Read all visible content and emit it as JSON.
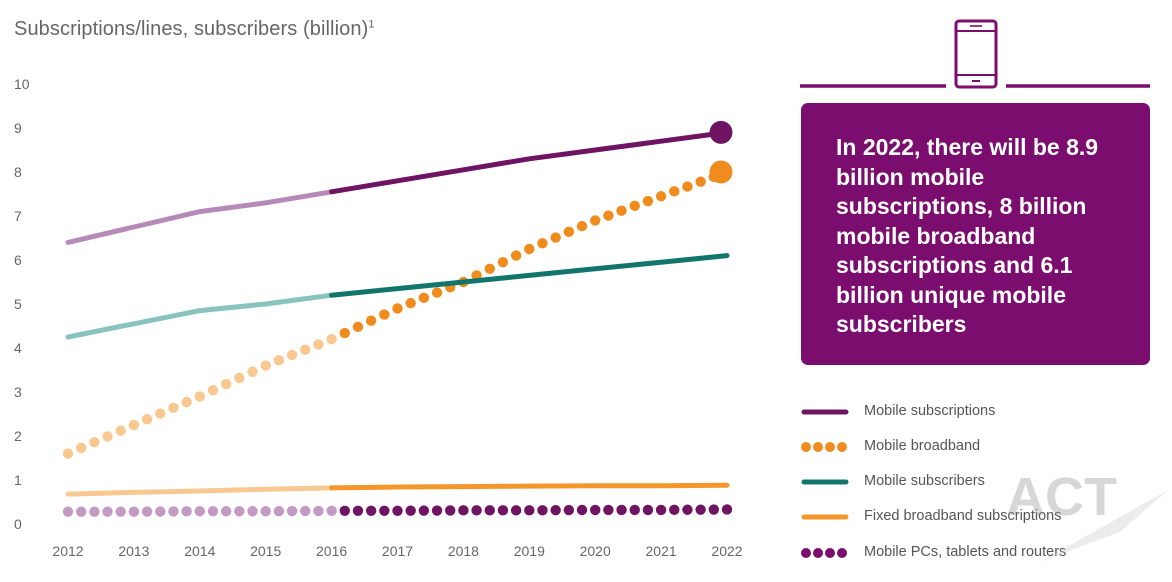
{
  "title": {
    "text": "Subscriptions/lines, subscribers (billion)",
    "superscript": "1"
  },
  "callout": {
    "text": "In 2022, there will be 8.9 billion mobile subscriptions, 8 billion mobile broadband subscriptions and 6.1 billion unique mobile subscribers",
    "background": "#7a0d6e",
    "icon": "mobile-phone-icon"
  },
  "legend": [
    {
      "label": "Mobile subscriptions",
      "style": "line",
      "color": "#6e1463"
    },
    {
      "label": "Mobile broadband",
      "style": "dots",
      "color": "#f08c1e"
    },
    {
      "label": "Mobile subscribers",
      "style": "line",
      "color": "#12756c"
    },
    {
      "label": "Fixed broadband subscriptions",
      "style": "line",
      "color": "#f5962a"
    },
    {
      "label": "Mobile PCs, tablets and routers",
      "style": "dots",
      "color": "#7a0d6e"
    }
  ],
  "watermark": "ACT",
  "chart_data": {
    "type": "line",
    "title": "Subscriptions/lines, subscribers (billion)",
    "x": [
      "2012",
      "2013",
      "2014",
      "2015",
      "2016",
      "2017",
      "2018",
      "2019",
      "2020",
      "2021",
      "2022"
    ],
    "ylim": [
      0,
      10
    ],
    "yticks": [
      0,
      1,
      2,
      3,
      4,
      5,
      6,
      7,
      8,
      9,
      10
    ],
    "grid": false,
    "legend_position": "right",
    "forecast_from": "2016",
    "series": [
      {
        "name": "Mobile subscriptions",
        "style": "line",
        "color": "#6e1463",
        "history_color": "#b58ab8",
        "values": [
          6.4,
          6.75,
          7.1,
          7.3,
          7.55,
          7.8,
          8.05,
          8.3,
          8.5,
          8.7,
          8.9
        ],
        "end_marker": true
      },
      {
        "name": "Mobile broadband",
        "style": "dots",
        "color": "#f08c1e",
        "history_color": "#f8c890",
        "values": [
          1.6,
          2.25,
          2.9,
          3.6,
          4.2,
          4.9,
          5.5,
          6.25,
          6.9,
          7.45,
          8.0
        ],
        "end_marker": true
      },
      {
        "name": "Mobile subscribers",
        "style": "line",
        "color": "#12756c",
        "history_color": "#89c3bd",
        "values": [
          4.25,
          4.55,
          4.85,
          5.0,
          5.2,
          5.35,
          5.5,
          5.65,
          5.8,
          5.95,
          6.1
        ],
        "end_marker": false
      },
      {
        "name": "Fixed broadband subscriptions",
        "style": "line",
        "color": "#f5962a",
        "history_color": "#f8c890",
        "values": [
          0.68,
          0.72,
          0.75,
          0.79,
          0.82,
          0.84,
          0.85,
          0.86,
          0.87,
          0.87,
          0.88
        ],
        "end_marker": false
      },
      {
        "name": "Mobile PCs, tablets and routers",
        "style": "dots",
        "color": "#6e1463",
        "history_color": "#c39ac4",
        "values": [
          0.28,
          0.28,
          0.29,
          0.29,
          0.3,
          0.3,
          0.31,
          0.31,
          0.32,
          0.32,
          0.33
        ],
        "end_marker": false
      }
    ]
  }
}
